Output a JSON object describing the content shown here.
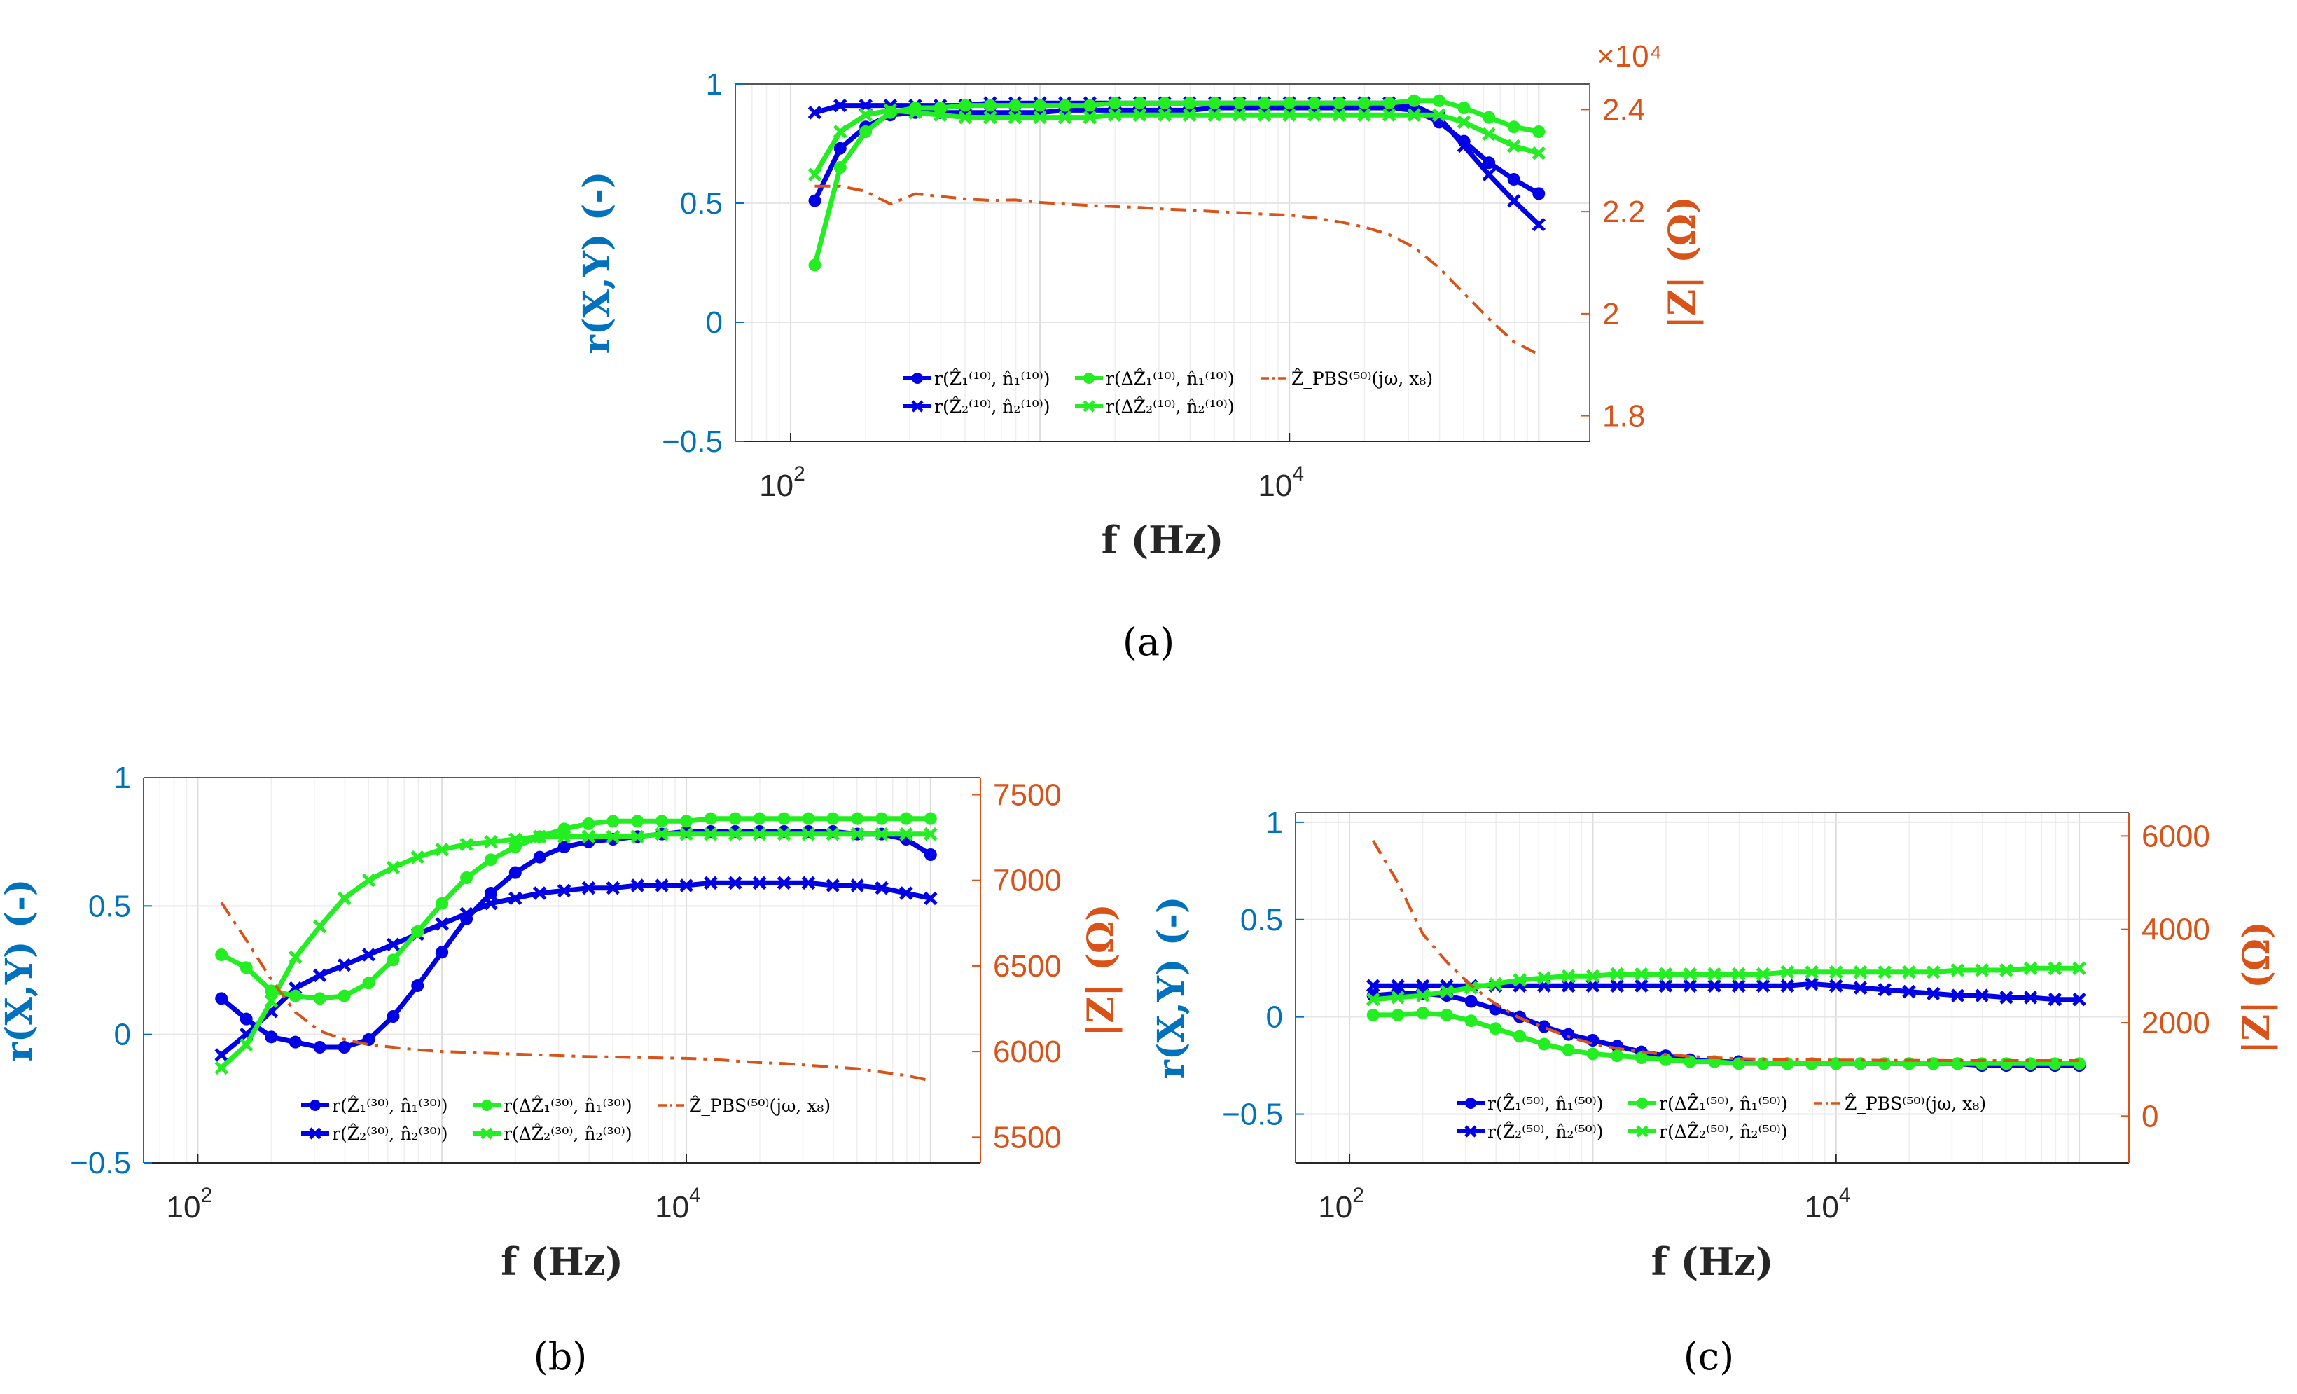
{
  "colors": {
    "blue": "#0000E6",
    "green": "#22EE22",
    "orange": "#D95319",
    "left_axis": "#0072BD",
    "right_axis": "#D95319",
    "grid": "#E6E6E6"
  },
  "chart_data": [
    {
      "panel": "a",
      "caption": "(a)",
      "type": "line",
      "xlabel": "f (Hz)",
      "ylabel_left": "r(X,Y) (-)",
      "ylabel_right": "|Z| (Ω)",
      "xscale": "log",
      "xlim": [
        60,
        160000
      ],
      "ylim_left": [
        -0.5,
        1.0
      ],
      "ylim_right": [
        1.75,
        2.45
      ],
      "yticks_left": [
        -0.5,
        0,
        0.5,
        1
      ],
      "ytick_labels_left": [
        "−0.5",
        "0",
        "0.5",
        "1"
      ],
      "yticks_right": [
        1.8,
        2.0,
        2.2,
        2.4
      ],
      "ytick_labels_right": [
        "1.8",
        "2",
        "2.2",
        "2.4"
      ],
      "right_axis_multiplier": "×10⁴",
      "xticks": [
        100,
        10000
      ],
      "xtick_labels": [
        [
          "10",
          "2"
        ],
        [
          "10",
          "4"
        ]
      ],
      "grid": true,
      "legend_placement": "bottom-center",
      "x": [
        125,
        158,
        200,
        251,
        316,
        398,
        501,
        631,
        794,
        1000,
        1259,
        1585,
        1995,
        2512,
        3162,
        3981,
        5012,
        6310,
        7943,
        10000,
        12589,
        15849,
        19953,
        25119,
        31623,
        39811,
        50119,
        63096,
        79433,
        100000
      ],
      "series": [
        {
          "name": "r(Ẑ₁⁽¹⁰⁾, n̂₁⁽¹⁰⁾)",
          "color": "blue",
          "marker": "circle",
          "axis": "left",
          "values": [
            0.51,
            0.73,
            0.82,
            0.87,
            0.88,
            0.88,
            0.88,
            0.88,
            0.88,
            0.88,
            0.89,
            0.89,
            0.89,
            0.89,
            0.89,
            0.89,
            0.9,
            0.9,
            0.9,
            0.9,
            0.9,
            0.9,
            0.9,
            0.9,
            0.89,
            0.84,
            0.76,
            0.67,
            0.6,
            0.54
          ]
        },
        {
          "name": "r(Ẑ₂⁽¹⁰⁾, n̂₂⁽¹⁰⁾)",
          "color": "blue",
          "marker": "x",
          "axis": "left",
          "values": [
            0.88,
            0.91,
            0.91,
            0.91,
            0.91,
            0.91,
            0.91,
            0.92,
            0.92,
            0.92,
            0.92,
            0.92,
            0.92,
            0.92,
            0.92,
            0.92,
            0.92,
            0.92,
            0.92,
            0.92,
            0.92,
            0.92,
            0.92,
            0.92,
            0.91,
            0.86,
            0.74,
            0.62,
            0.51,
            0.41
          ]
        },
        {
          "name": "r(ΔẐ₁⁽¹⁰⁾, n̂₁⁽¹⁰⁾)",
          "color": "green",
          "marker": "circle",
          "axis": "left",
          "values": [
            0.24,
            0.65,
            0.8,
            0.88,
            0.9,
            0.9,
            0.91,
            0.91,
            0.91,
            0.91,
            0.91,
            0.91,
            0.92,
            0.92,
            0.92,
            0.92,
            0.92,
            0.92,
            0.92,
            0.92,
            0.92,
            0.92,
            0.92,
            0.92,
            0.93,
            0.93,
            0.9,
            0.86,
            0.82,
            0.8
          ]
        },
        {
          "name": "r(ΔẐ₂⁽¹⁰⁾, n̂₂⁽¹⁰⁾)",
          "color": "green",
          "marker": "x",
          "axis": "left",
          "values": [
            0.62,
            0.8,
            0.87,
            0.89,
            0.88,
            0.87,
            0.86,
            0.86,
            0.86,
            0.86,
            0.86,
            0.86,
            0.87,
            0.87,
            0.87,
            0.87,
            0.87,
            0.87,
            0.87,
            0.87,
            0.87,
            0.87,
            0.87,
            0.87,
            0.87,
            0.87,
            0.84,
            0.79,
            0.74,
            0.71
          ]
        },
        {
          "name": "Ẑ_PBS⁽⁵⁰⁾(jω, x₈)",
          "color": "orange",
          "style": "dash-dot",
          "axis": "right",
          "values": [
            2.25,
            2.25,
            2.24,
            2.215,
            2.235,
            2.23,
            2.225,
            2.222,
            2.223,
            2.218,
            2.215,
            2.212,
            2.21,
            2.208,
            2.205,
            2.203,
            2.2,
            2.198,
            2.195,
            2.193,
            2.188,
            2.18,
            2.17,
            2.155,
            2.13,
            2.09,
            2.04,
            1.99,
            1.945,
            1.92
          ]
        }
      ]
    },
    {
      "panel": "b",
      "caption": "(b)",
      "type": "line",
      "xlabel": "f (Hz)",
      "ylabel_left": "r(X,Y) (-)",
      "ylabel_right": "|Z| (Ω)",
      "xscale": "log",
      "xlim": [
        60,
        160000
      ],
      "ylim_left": [
        -0.5,
        1.0
      ],
      "ylim_right": [
        5350,
        7600
      ],
      "yticks_left": [
        -0.5,
        0,
        0.5,
        1
      ],
      "ytick_labels_left": [
        "−0.5",
        "0",
        "0.5",
        "1"
      ],
      "yticks_right": [
        5500,
        6000,
        6500,
        7000,
        7500
      ],
      "ytick_labels_right": [
        "5500",
        "6000",
        "6500",
        "7000",
        "7500"
      ],
      "xticks": [
        100,
        10000
      ],
      "xtick_labels": [
        [
          "10",
          "2"
        ],
        [
          "10",
          "4"
        ]
      ],
      "grid": true,
      "legend_placement": "bottom-center",
      "x": [
        125,
        158,
        200,
        251,
        316,
        398,
        501,
        631,
        794,
        1000,
        1259,
        1585,
        1995,
        2512,
        3162,
        3981,
        5012,
        6310,
        7943,
        10000,
        12589,
        15849,
        19953,
        25119,
        31623,
        39811,
        50119,
        63096,
        79433,
        100000
      ],
      "series": [
        {
          "name": "r(Ẑ₁⁽³⁰⁾, n̂₁⁽³⁰⁾)",
          "color": "blue",
          "marker": "circle",
          "axis": "left",
          "values": [
            0.14,
            0.06,
            -0.01,
            -0.03,
            -0.05,
            -0.05,
            -0.02,
            0.07,
            0.19,
            0.32,
            0.45,
            0.55,
            0.63,
            0.69,
            0.73,
            0.75,
            0.76,
            0.77,
            0.78,
            0.79,
            0.79,
            0.79,
            0.79,
            0.79,
            0.79,
            0.79,
            0.78,
            0.78,
            0.76,
            0.7
          ]
        },
        {
          "name": "r(Ẑ₂⁽³⁰⁾, n̂₂⁽³⁰⁾)",
          "color": "blue",
          "marker": "x",
          "axis": "left",
          "values": [
            -0.08,
            0.0,
            0.09,
            0.18,
            0.23,
            0.27,
            0.31,
            0.35,
            0.39,
            0.43,
            0.47,
            0.51,
            0.53,
            0.55,
            0.56,
            0.57,
            0.57,
            0.58,
            0.58,
            0.58,
            0.59,
            0.59,
            0.59,
            0.59,
            0.59,
            0.58,
            0.58,
            0.57,
            0.55,
            0.53
          ]
        },
        {
          "name": "r(ΔẐ₁⁽³⁰⁾, n̂₁⁽³⁰⁾)",
          "color": "green",
          "marker": "circle",
          "axis": "left",
          "values": [
            0.31,
            0.26,
            0.17,
            0.15,
            0.14,
            0.15,
            0.2,
            0.29,
            0.4,
            0.51,
            0.61,
            0.68,
            0.73,
            0.77,
            0.8,
            0.82,
            0.83,
            0.83,
            0.83,
            0.83,
            0.84,
            0.84,
            0.84,
            0.84,
            0.84,
            0.84,
            0.84,
            0.84,
            0.84,
            0.84
          ]
        },
        {
          "name": "r(ΔẐ₂⁽³⁰⁾, n̂₂⁽³⁰⁾)",
          "color": "green",
          "marker": "x",
          "axis": "left",
          "values": [
            -0.13,
            -0.04,
            0.13,
            0.3,
            0.42,
            0.53,
            0.6,
            0.65,
            0.69,
            0.72,
            0.74,
            0.75,
            0.76,
            0.77,
            0.77,
            0.77,
            0.77,
            0.77,
            0.78,
            0.78,
            0.78,
            0.78,
            0.78,
            0.78,
            0.78,
            0.78,
            0.78,
            0.78,
            0.78,
            0.78
          ]
        },
        {
          "name": "Ẑ_PBS⁽⁵⁰⁾(jω, x₈)",
          "color": "orange",
          "style": "dash-dot",
          "axis": "right",
          "values": [
            6870,
            6650,
            6420,
            6230,
            6120,
            6070,
            6040,
            6025,
            6010,
            6000,
            5995,
            5990,
            5985,
            5980,
            5975,
            5970,
            5968,
            5965,
            5963,
            5960,
            5955,
            5945,
            5935,
            5930,
            5920,
            5910,
            5900,
            5880,
            5860,
            5830
          ]
        }
      ]
    },
    {
      "panel": "c",
      "caption": "(c)",
      "type": "line",
      "xlabel": "f (Hz)",
      "ylabel_left": "r(X,Y) (-)",
      "ylabel_right": "|Z| (Ω)",
      "xscale": "log",
      "xlim": [
        60,
        160000
      ],
      "ylim_left": [
        -0.75,
        1.05
      ],
      "ylim_right": [
        -1000,
        6500
      ],
      "yticks_left": [
        -0.5,
        0,
        0.5,
        1
      ],
      "ytick_labels_left": [
        "−0.5",
        "0",
        "0.5",
        "1"
      ],
      "yticks_right": [
        0,
        2000,
        4000,
        6000
      ],
      "ytick_labels_right": [
        "0",
        "2000",
        "4000",
        "6000"
      ],
      "xticks": [
        100,
        10000
      ],
      "xtick_labels": [
        [
          "10",
          "2"
        ],
        [
          "10",
          "4"
        ]
      ],
      "grid": true,
      "legend_placement": "bottom-center",
      "x": [
        125,
        158,
        200,
        251,
        316,
        398,
        501,
        631,
        794,
        1000,
        1259,
        1585,
        1995,
        2512,
        3162,
        3981,
        5012,
        6310,
        7943,
        10000,
        12589,
        15849,
        19953,
        25119,
        31623,
        39811,
        50119,
        63096,
        79433,
        100000
      ],
      "series": [
        {
          "name": "r(Ẑ₁⁽⁵⁰⁾, n̂₁⁽⁵⁰⁾)",
          "color": "blue",
          "marker": "circle",
          "axis": "left",
          "values": [
            0.11,
            0.12,
            0.12,
            0.11,
            0.08,
            0.04,
            0.0,
            -0.05,
            -0.09,
            -0.12,
            -0.15,
            -0.18,
            -0.2,
            -0.22,
            -0.23,
            -0.23,
            -0.24,
            -0.24,
            -0.24,
            -0.24,
            -0.24,
            -0.24,
            -0.24,
            -0.24,
            -0.24,
            -0.25,
            -0.25,
            -0.25,
            -0.25,
            -0.25
          ]
        },
        {
          "name": "r(Ẑ₂⁽⁵⁰⁾, n̂₂⁽⁵⁰⁾)",
          "color": "blue",
          "marker": "x",
          "axis": "left",
          "values": [
            0.16,
            0.16,
            0.16,
            0.16,
            0.16,
            0.16,
            0.16,
            0.16,
            0.16,
            0.16,
            0.16,
            0.16,
            0.16,
            0.16,
            0.16,
            0.16,
            0.16,
            0.16,
            0.17,
            0.16,
            0.15,
            0.14,
            0.13,
            0.12,
            0.11,
            0.11,
            0.1,
            0.1,
            0.09,
            0.09
          ]
        },
        {
          "name": "r(ΔẐ₁⁽⁵⁰⁾, n̂₁⁽⁵⁰⁾)",
          "color": "green",
          "marker": "circle",
          "axis": "left",
          "values": [
            0.01,
            0.01,
            0.02,
            0.01,
            -0.02,
            -0.06,
            -0.1,
            -0.14,
            -0.17,
            -0.19,
            -0.2,
            -0.21,
            -0.22,
            -0.23,
            -0.23,
            -0.24,
            -0.24,
            -0.24,
            -0.24,
            -0.24,
            -0.24,
            -0.24,
            -0.24,
            -0.24,
            -0.24,
            -0.24,
            -0.24,
            -0.24,
            -0.24,
            -0.24
          ]
        },
        {
          "name": "r(ΔẐ₂⁽⁵⁰⁾, n̂₂⁽⁵⁰⁾)",
          "color": "green",
          "marker": "x",
          "axis": "left",
          "values": [
            0.09,
            0.1,
            0.11,
            0.13,
            0.15,
            0.17,
            0.19,
            0.2,
            0.21,
            0.21,
            0.22,
            0.22,
            0.22,
            0.22,
            0.22,
            0.22,
            0.22,
            0.23,
            0.23,
            0.23,
            0.23,
            0.23,
            0.23,
            0.23,
            0.24,
            0.24,
            0.24,
            0.25,
            0.25,
            0.25
          ]
        },
        {
          "name": "Ẑ_PBS⁽⁵⁰⁾(jω, x₈)",
          "color": "orange",
          "style": "dash-dot",
          "axis": "right",
          "values": [
            5900,
            5000,
            3900,
            3300,
            2800,
            2400,
            2100,
            1900,
            1700,
            1550,
            1450,
            1380,
            1320,
            1280,
            1250,
            1230,
            1220,
            1210,
            1205,
            1200,
            1200,
            1195,
            1195,
            1195,
            1190,
            1190,
            1190,
            1190,
            1190,
            1190
          ]
        }
      ]
    }
  ]
}
